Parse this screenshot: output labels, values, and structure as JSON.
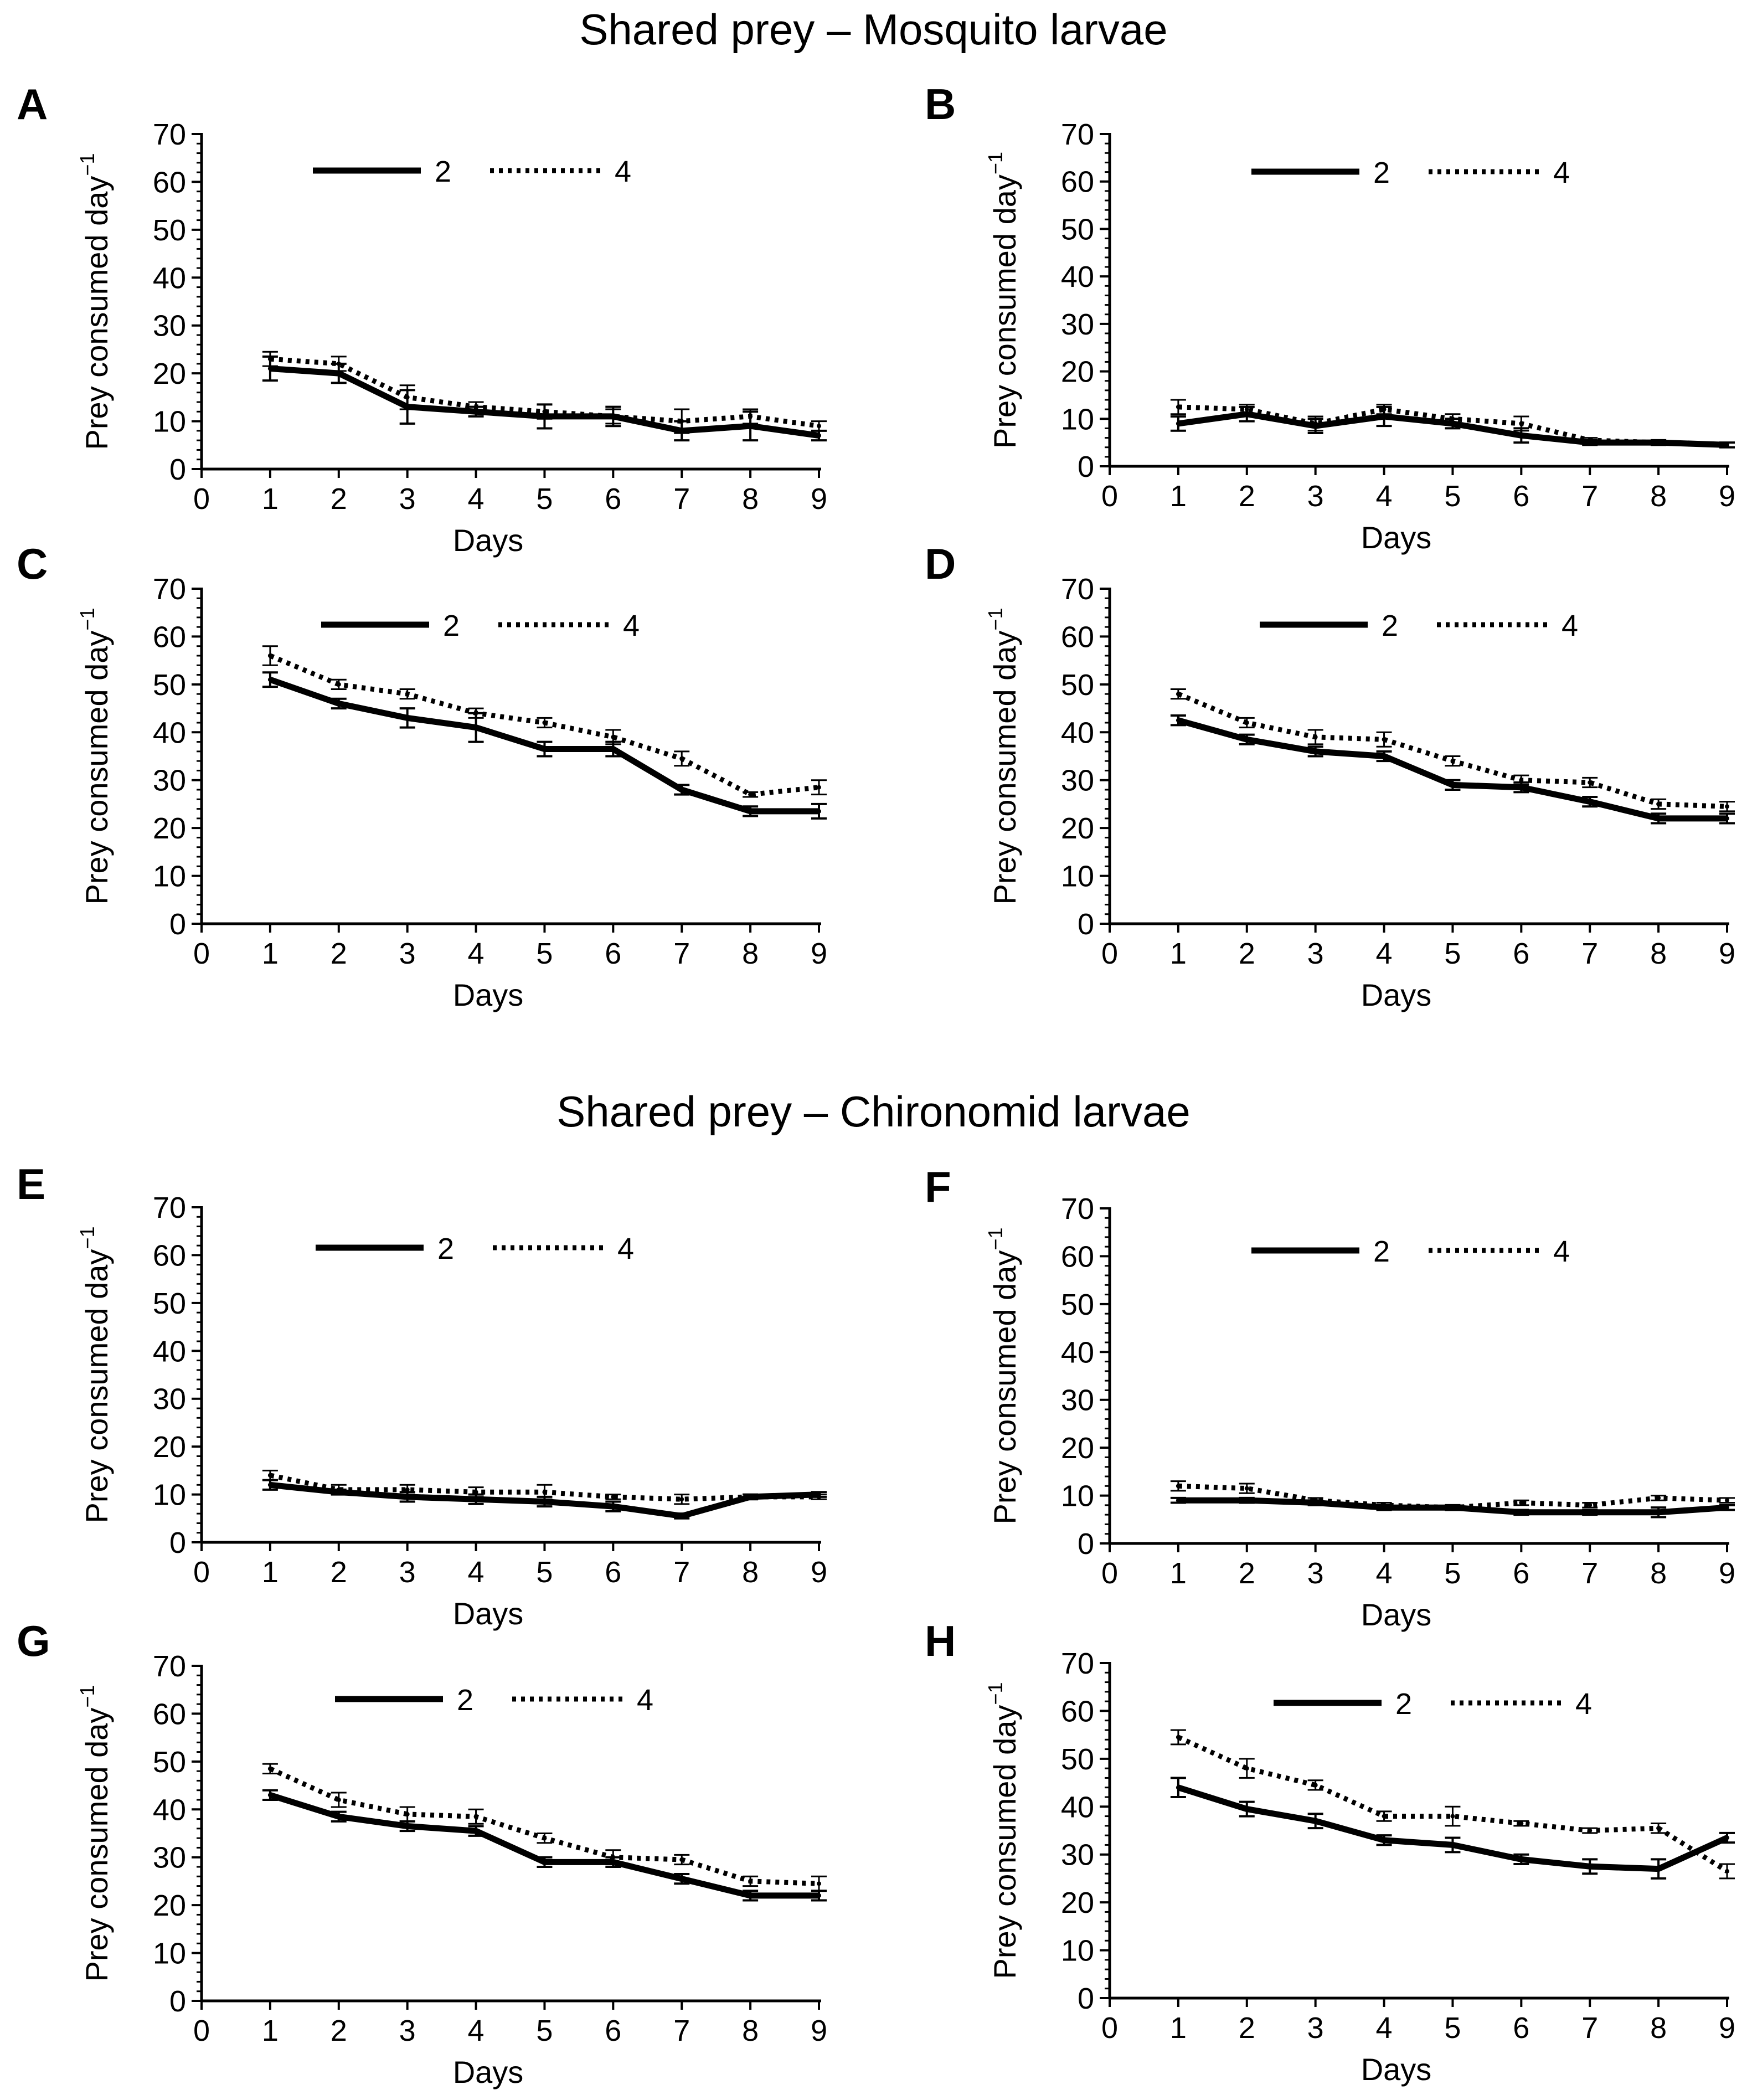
{
  "figure": {
    "section_titles": [
      "Shared prey – Mosquito larvae",
      "Shared prey – Chironomid larvae"
    ],
    "colors": {
      "line": "#000000",
      "background": "#ffffff"
    }
  },
  "chart_data": [
    {
      "panel": "A",
      "type": "line",
      "section": "Shared prey – Mosquito larvae",
      "xlabel": "Days",
      "ylabel": "Prey consumed day",
      "ylabel_superscript": "−1",
      "xlim": [
        0,
        9
      ],
      "ylim": [
        0,
        70
      ],
      "xticks": [
        "0",
        "1",
        "2",
        "3",
        "4",
        "5",
        "6",
        "7",
        "8",
        "9"
      ],
      "yticks": [
        "0",
        "10",
        "20",
        "30",
        "40",
        "50",
        "60",
        "70"
      ],
      "legend": [
        "2",
        "4"
      ],
      "x": [
        1,
        2,
        3,
        4,
        5,
        6,
        7,
        8,
        9
      ],
      "series": [
        {
          "name": "2",
          "style": "solid",
          "values": [
            21,
            20,
            13,
            12,
            11,
            11,
            8,
            9,
            7
          ],
          "errors": [
            2.5,
            2,
            3.5,
            1,
            2.5,
            2,
            2,
            3,
            1
          ]
        },
        {
          "name": "4",
          "style": "dotted",
          "values": [
            23,
            22,
            15,
            13,
            12,
            11,
            10,
            11,
            9
          ],
          "errors": [
            1.5,
            1.5,
            2.5,
            1,
            1.5,
            1.5,
            2.5,
            1.5,
            1
          ]
        }
      ]
    },
    {
      "panel": "B",
      "type": "line",
      "section": "Shared prey – Mosquito larvae",
      "xlabel": "Days",
      "ylabel": "Prey consumed day",
      "ylabel_superscript": "−1",
      "xlim": [
        0,
        9
      ],
      "ylim": [
        0,
        70
      ],
      "xticks": [
        "0",
        "1",
        "2",
        "3",
        "4",
        "5",
        "6",
        "7",
        "8",
        "9"
      ],
      "yticks": [
        "0",
        "10",
        "20",
        "30",
        "40",
        "50",
        "60",
        "70"
      ],
      "legend": [
        "2",
        "4"
      ],
      "x": [
        1,
        2,
        3,
        4,
        5,
        6,
        7,
        8,
        9
      ],
      "series": [
        {
          "name": "2",
          "style": "solid",
          "values": [
            9,
            11,
            8.5,
            10.5,
            9,
            6.5,
            5,
            5,
            4.5
          ],
          "errors": [
            1.5,
            1.5,
            1.5,
            2,
            1,
            1.5,
            0.5,
            0.5,
            0.5
          ]
        },
        {
          "name": "4",
          "style": "dotted",
          "values": [
            12.5,
            12,
            9,
            12,
            10,
            9,
            5.5,
            5,
            4.5
          ],
          "errors": [
            1.5,
            1,
            1.5,
            1,
            1,
            1.5,
            0.5,
            0.5,
            0.5
          ]
        }
      ]
    },
    {
      "panel": "C",
      "type": "line",
      "section": "Shared prey – Mosquito larvae",
      "xlabel": "Days",
      "ylabel": "Prey consumed day",
      "ylabel_superscript": "−1",
      "xlim": [
        0,
        9
      ],
      "ylim": [
        0,
        70
      ],
      "xticks": [
        "0",
        "1",
        "2",
        "3",
        "4",
        "5",
        "6",
        "7",
        "8",
        "9"
      ],
      "yticks": [
        "0",
        "10",
        "20",
        "30",
        "40",
        "50",
        "60",
        "70"
      ],
      "legend": [
        "2",
        "4"
      ],
      "x": [
        1,
        2,
        3,
        4,
        5,
        6,
        7,
        8,
        9
      ],
      "series": [
        {
          "name": "2",
          "style": "solid",
          "values": [
            51,
            46,
            43,
            41,
            36.5,
            36.5,
            28,
            23.5,
            23.5
          ],
          "errors": [
            1.5,
            1,
            2,
            3,
            1.5,
            1.5,
            1,
            1,
            1.5
          ]
        },
        {
          "name": "4",
          "style": "dotted",
          "values": [
            56,
            50,
            48,
            44,
            42,
            39,
            34.5,
            27,
            28.5
          ],
          "errors": [
            2,
            1,
            1,
            1,
            1,
            1.5,
            1.5,
            0.5,
            1.5
          ]
        }
      ]
    },
    {
      "panel": "D",
      "type": "line",
      "section": "Shared prey – Mosquito larvae",
      "xlabel": "Days",
      "ylabel": "Prey consumed day",
      "ylabel_superscript": "−1",
      "xlim": [
        0,
        9
      ],
      "ylim": [
        0,
        70
      ],
      "xticks": [
        "0",
        "1",
        "2",
        "3",
        "4",
        "5",
        "6",
        "7",
        "8",
        "9"
      ],
      "yticks": [
        "0",
        "10",
        "20",
        "30",
        "40",
        "50",
        "60",
        "70"
      ],
      "legend": [
        "2",
        "4"
      ],
      "x": [
        1,
        2,
        3,
        4,
        5,
        6,
        7,
        8,
        9
      ],
      "series": [
        {
          "name": "2",
          "style": "solid",
          "values": [
            42.5,
            38.5,
            36,
            35,
            29,
            28.5,
            25.5,
            22,
            22
          ],
          "errors": [
            1,
            1,
            1,
            1,
            1,
            1,
            1,
            1,
            1
          ]
        },
        {
          "name": "4",
          "style": "dotted",
          "values": [
            48,
            42,
            39,
            38.5,
            34,
            30,
            29.5,
            25,
            24.5
          ],
          "errors": [
            1,
            1,
            1.5,
            1.5,
            1,
            1,
            1,
            1,
            1
          ]
        }
      ]
    },
    {
      "panel": "E",
      "type": "line",
      "section": "Shared prey – Chironomid larvae",
      "xlabel": "Days",
      "ylabel": "Prey consumed day",
      "ylabel_superscript": "−1",
      "xlim": [
        0,
        9
      ],
      "ylim": [
        0,
        70
      ],
      "xticks": [
        "0",
        "1",
        "2",
        "3",
        "4",
        "5",
        "6",
        "7",
        "8",
        "9"
      ],
      "yticks": [
        "0",
        "10",
        "20",
        "30",
        "40",
        "50",
        "60",
        "70"
      ],
      "legend": [
        "2",
        "4"
      ],
      "x": [
        1,
        2,
        3,
        4,
        5,
        6,
        7,
        8,
        9
      ],
      "series": [
        {
          "name": "2",
          "style": "solid",
          "values": [
            12,
            10.5,
            9.5,
            9,
            8.5,
            7.5,
            5.5,
            9.5,
            10
          ],
          "errors": [
            1,
            0.5,
            1,
            1,
            1,
            1,
            0.5,
            0.5,
            0.5
          ]
        },
        {
          "name": "4",
          "style": "dotted",
          "values": [
            14,
            11,
            11,
            10.5,
            10.5,
            9.5,
            9,
            9.5,
            9.5
          ],
          "errors": [
            1,
            1,
            1,
            1,
            1.5,
            0.5,
            1,
            0.5,
            0.5
          ]
        }
      ]
    },
    {
      "panel": "F",
      "type": "line",
      "section": "Shared prey – Chironomid larvae",
      "xlabel": "Days",
      "ylabel": "Prey consumed day",
      "ylabel_superscript": "−1",
      "xlim": [
        0,
        9
      ],
      "ylim": [
        0,
        70
      ],
      "xticks": [
        "0",
        "1",
        "2",
        "3",
        "4",
        "5",
        "6",
        "7",
        "8",
        "9"
      ],
      "yticks": [
        "0",
        "10",
        "20",
        "30",
        "40",
        "50",
        "60",
        "70"
      ],
      "legend": [
        "2",
        "4"
      ],
      "x": [
        1,
        2,
        3,
        4,
        5,
        6,
        7,
        8,
        9
      ],
      "series": [
        {
          "name": "2",
          "style": "solid",
          "values": [
            9,
            9,
            8.5,
            7.5,
            7.5,
            6.5,
            6.5,
            6.5,
            7.5
          ],
          "errors": [
            0.5,
            0.5,
            0.5,
            0.5,
            0.5,
            0.5,
            0.5,
            1,
            0.5
          ]
        },
        {
          "name": "4",
          "style": "dotted",
          "values": [
            12,
            11.5,
            9,
            8,
            7.5,
            8.5,
            8,
            9.5,
            9
          ],
          "errors": [
            1,
            1,
            0.5,
            0.5,
            0.5,
            0.5,
            0.5,
            0.5,
            0.5
          ]
        }
      ]
    },
    {
      "panel": "G",
      "type": "line",
      "section": "Shared prey – Chironomid larvae",
      "xlabel": "Days",
      "ylabel": "Prey consumed day",
      "ylabel_superscript": "−1",
      "xlim": [
        0,
        9
      ],
      "ylim": [
        0,
        70
      ],
      "xticks": [
        "0",
        "1",
        "2",
        "3",
        "4",
        "5",
        "6",
        "7",
        "8",
        "9"
      ],
      "yticks": [
        "0",
        "10",
        "20",
        "30",
        "40",
        "50",
        "60",
        "70"
      ],
      "legend": [
        "2",
        "4"
      ],
      "x": [
        1,
        2,
        3,
        4,
        5,
        6,
        7,
        8,
        9
      ],
      "series": [
        {
          "name": "2",
          "style": "solid",
          "values": [
            43,
            38.5,
            36.5,
            35.5,
            29,
            29,
            25.5,
            22,
            22
          ],
          "errors": [
            1,
            1,
            1,
            1,
            1,
            1,
            1,
            1,
            1
          ]
        },
        {
          "name": "4",
          "style": "dotted",
          "values": [
            48.5,
            42,
            39,
            38.5,
            34,
            30,
            29.5,
            25,
            24.5
          ],
          "errors": [
            1,
            1.5,
            1.5,
            1.5,
            1,
            1.5,
            1,
            1,
            1.5
          ]
        }
      ]
    },
    {
      "panel": "H",
      "type": "line",
      "section": "Shared prey – Chironomid larvae",
      "xlabel": "Days",
      "ylabel": "Prey consumed day",
      "ylabel_superscript": "−1",
      "xlim": [
        0,
        9
      ],
      "ylim": [
        0,
        70
      ],
      "xticks": [
        "0",
        "1",
        "2",
        "3",
        "4",
        "5",
        "6",
        "7",
        "8",
        "9"
      ],
      "yticks": [
        "0",
        "10",
        "20",
        "30",
        "40",
        "50",
        "60",
        "70"
      ],
      "legend": [
        "2",
        "4"
      ],
      "x": [
        1,
        2,
        3,
        4,
        5,
        6,
        7,
        8,
        9
      ],
      "series": [
        {
          "name": "2",
          "style": "solid",
          "values": [
            44,
            39.5,
            37,
            33,
            32,
            29,
            27.5,
            27,
            33.5
          ],
          "errors": [
            2,
            1.5,
            1.5,
            1,
            1.5,
            1,
            1.5,
            2,
            1
          ]
        },
        {
          "name": "4",
          "style": "dotted",
          "values": [
            54.5,
            48,
            44.5,
            38,
            38,
            36.5,
            35,
            35.5,
            26.5
          ],
          "errors": [
            1.5,
            2,
            1,
            1,
            2,
            0.5,
            0.5,
            1,
            1.5
          ]
        }
      ]
    }
  ]
}
